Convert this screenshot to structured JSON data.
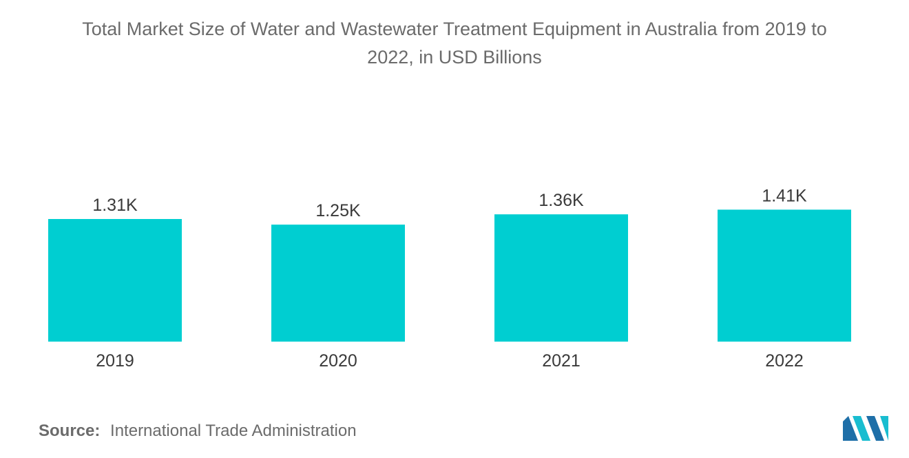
{
  "chart_data": {
    "type": "bar",
    "title_lines": [
      "Total Market Size of Water and Wastewater Treatment Equipment in Australia from 2019 to",
      "2022, in USD Billions"
    ],
    "categories": [
      "2019",
      "2020",
      "2021",
      "2022"
    ],
    "values": [
      1310,
      1250,
      1360,
      1410
    ],
    "value_labels": [
      "1.31K",
      "1.25K",
      "1.36K",
      "1.41K"
    ],
    "bar_color": "#00CED1",
    "grid": false,
    "legend": "none"
  },
  "source": {
    "label": "Source:",
    "text": "International Trade Administration"
  },
  "logo": {
    "name": "mordor-intelligence-logo",
    "colors": [
      "#1E6FA8",
      "#19BDD0"
    ]
  }
}
